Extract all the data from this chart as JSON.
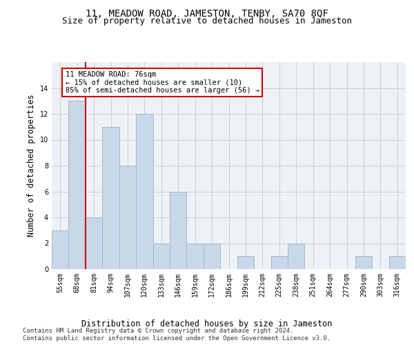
{
  "title": "11, MEADOW ROAD, JAMESTON, TENBY, SA70 8QF",
  "subtitle": "Size of property relative to detached houses in Jameston",
  "xlabel_bottom": "Distribution of detached houses by size in Jameston",
  "ylabel": "Number of detached properties",
  "categories": [
    "55sqm",
    "68sqm",
    "81sqm",
    "94sqm",
    "107sqm",
    "120sqm",
    "133sqm",
    "146sqm",
    "159sqm",
    "172sqm",
    "186sqm",
    "199sqm",
    "212sqm",
    "225sqm",
    "238sqm",
    "251sqm",
    "264sqm",
    "277sqm",
    "290sqm",
    "303sqm",
    "316sqm"
  ],
  "values": [
    3,
    13,
    4,
    11,
    8,
    12,
    2,
    6,
    2,
    2,
    0,
    1,
    0,
    1,
    2,
    0,
    0,
    0,
    1,
    0,
    1
  ],
  "bar_color": "#c8d8e8",
  "bar_edgecolor": "#a0b8d0",
  "grid_color": "#cccccc",
  "bg_color": "#eef2f7",
  "annotation_text": "11 MEADOW ROAD: 76sqm\n← 15% of detached houses are smaller (10)\n85% of semi-detached houses are larger (56) →",
  "annotation_box_edgecolor": "#cc0000",
  "vline_x": 1.5,
  "vline_color": "#cc0000",
  "ylim": [
    0,
    16
  ],
  "yticks": [
    0,
    2,
    4,
    6,
    8,
    10,
    12,
    14,
    16
  ],
  "footer_line1": "Contains HM Land Registry data © Crown copyright and database right 2024.",
  "footer_line2": "Contains public sector information licensed under the Open Government Licence v3.0.",
  "title_fontsize": 10,
  "subtitle_fontsize": 9,
  "axis_fontsize": 8.5,
  "tick_fontsize": 7,
  "footer_fontsize": 6.5,
  "annotation_fontsize": 7.5
}
